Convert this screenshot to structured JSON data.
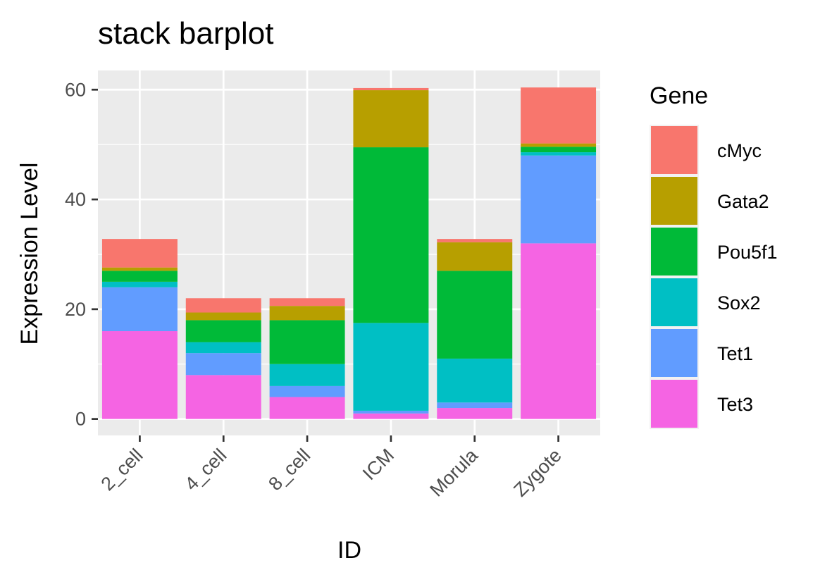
{
  "chart_data": {
    "type": "bar",
    "stacked": true,
    "title": "stack barplot",
    "xlabel": "ID",
    "ylabel": "Expression Level",
    "categories": [
      "2_cell",
      "4_cell",
      "8_cell",
      "ICM",
      "Morula",
      "Zygote"
    ],
    "ylim": [
      -3.0,
      63.5
    ],
    "yticks": [
      0,
      20,
      40,
      60
    ],
    "grid": true,
    "legend": {
      "title": "Gene",
      "placement": "right"
    },
    "series": [
      {
        "name": "cMyc",
        "color": "#F8766D",
        "values": [
          5.2,
          2.6,
          1.4,
          0.4,
          0.6,
          10.2
        ]
      },
      {
        "name": "Gata2",
        "color": "#B79F00",
        "values": [
          0.6,
          1.4,
          2.6,
          10.4,
          5.2,
          0.6
        ]
      },
      {
        "name": "Pou5f1",
        "color": "#00BA38",
        "values": [
          2.0,
          4.0,
          8.0,
          32.0,
          16.0,
          1.0
        ]
      },
      {
        "name": "Sox2",
        "color": "#00BFC4",
        "values": [
          1.0,
          2.0,
          4.0,
          16.0,
          8.0,
          0.6
        ]
      },
      {
        "name": "Tet1",
        "color": "#619CFF",
        "values": [
          8.0,
          4.0,
          2.0,
          0.5,
          1.0,
          16.0
        ]
      },
      {
        "name": "Tet3",
        "color": "#F564E3",
        "values": [
          16.0,
          8.0,
          4.0,
          1.0,
          2.0,
          32.0
        ]
      }
    ]
  }
}
